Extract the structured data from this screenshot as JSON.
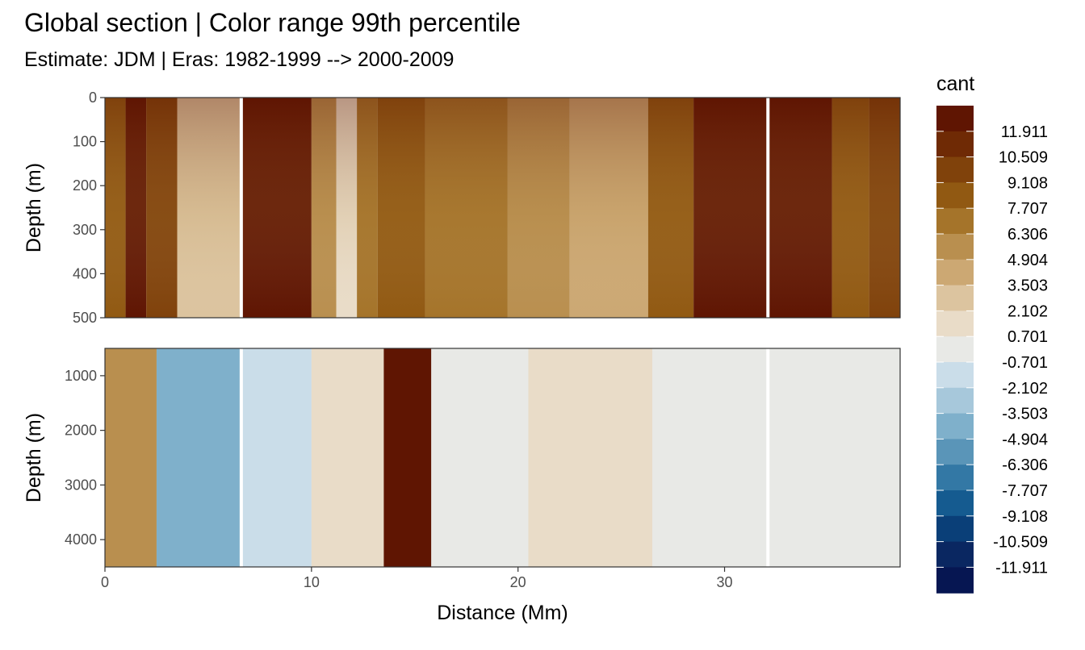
{
  "title": "Global section | Color range 99th percentile",
  "subtitle": "Estimate: JDM  | Eras: 1982-1999 --> 2000-2009",
  "chart_data": {
    "type": "heatmap",
    "xlabel": "Distance (Mm)",
    "ylabel": "Depth (m)",
    "xlim": [
      0,
      38.5
    ],
    "x_ticks": [
      "0",
      "10",
      "20",
      "30"
    ],
    "y_reversed": true,
    "panels": [
      {
        "name": "upper",
        "ylim": [
          0,
          500
        ],
        "y_ticks": [
          "0",
          "100",
          "200",
          "300",
          "400",
          "500"
        ],
        "gaps_x": [
          6.6,
          32.1
        ],
        "bands": [
          {
            "x0": 0,
            "x1": 1.0,
            "v": 7.707
          },
          {
            "x0": 1.0,
            "x1": 2.0,
            "v": 11.911
          },
          {
            "x0": 2.0,
            "x1": 3.5,
            "v": 9.108
          },
          {
            "x0": 3.5,
            "x1": 6.6,
            "v": 2.102
          },
          {
            "x0": 6.6,
            "x1": 10.0,
            "v": 11.911
          },
          {
            "x0": 10.0,
            "x1": 11.2,
            "v": 4.904
          },
          {
            "x0": 11.2,
            "x1": 12.2,
            "v": 0.701
          },
          {
            "x0": 12.2,
            "x1": 13.2,
            "v": 6.306
          },
          {
            "x0": 13.2,
            "x1": 15.5,
            "v": 7.707
          },
          {
            "x0": 15.5,
            "x1": 19.5,
            "v": 6.306
          },
          {
            "x0": 19.5,
            "x1": 22.5,
            "v": 4.904
          },
          {
            "x0": 22.5,
            "x1": 26.3,
            "v": 3.503
          },
          {
            "x0": 26.3,
            "x1": 28.5,
            "v": 7.707
          },
          {
            "x0": 28.5,
            "x1": 32.1,
            "v": 11.911
          },
          {
            "x0": 32.1,
            "x1": 35.2,
            "v": 11.911
          },
          {
            "x0": 35.2,
            "x1": 37.0,
            "v": 7.707
          },
          {
            "x0": 37.0,
            "x1": 38.5,
            "v": 9.108
          }
        ]
      },
      {
        "name": "lower",
        "ylim": [
          500,
          4500
        ],
        "y_ticks": [
          "1000",
          "2000",
          "3000",
          "4000"
        ],
        "gaps_x": [
          6.6,
          32.1
        ],
        "bands": [
          {
            "x0": 0,
            "x1": 2.5,
            "v": 4.904
          },
          {
            "x0": 2.5,
            "x1": 6.6,
            "v": -4.904
          },
          {
            "x0": 6.6,
            "x1": 10.0,
            "v": -2.102
          },
          {
            "x0": 10.0,
            "x1": 13.5,
            "v": 0.701
          },
          {
            "x0": 13.5,
            "x1": 15.8,
            "v": 11.911
          },
          {
            "x0": 15.8,
            "x1": 20.5,
            "v": -0.701
          },
          {
            "x0": 20.5,
            "x1": 26.5,
            "v": 0.701
          },
          {
            "x0": 26.5,
            "x1": 32.1,
            "v": -0.701
          },
          {
            "x0": 32.1,
            "x1": 38.5,
            "v": -0.701
          }
        ]
      }
    ],
    "legend": {
      "title": "cant",
      "position": "right",
      "labels": [
        "11.911",
        "10.509",
        "9.108",
        "7.707",
        "6.306",
        "4.904",
        "3.503",
        "2.102",
        "0.701",
        "-0.701",
        "-2.102",
        "-3.503",
        "-4.904",
        "-6.306",
        "-7.707",
        "-9.108",
        "-10.509",
        "-11.911"
      ],
      "colors": [
        "#5f1502",
        "#6f2a05",
        "#80420b",
        "#915912",
        "#a5742a",
        "#b98f4f",
        "#cca873",
        "#dcc49f",
        "#e9dcc8",
        "#e8e9e6",
        "#cadde9",
        "#a7c8db",
        "#7fb0cb",
        "#5a95b8",
        "#3378a5",
        "#155b90",
        "#0a3f78",
        "#0a2761",
        "#061652"
      ]
    }
  }
}
